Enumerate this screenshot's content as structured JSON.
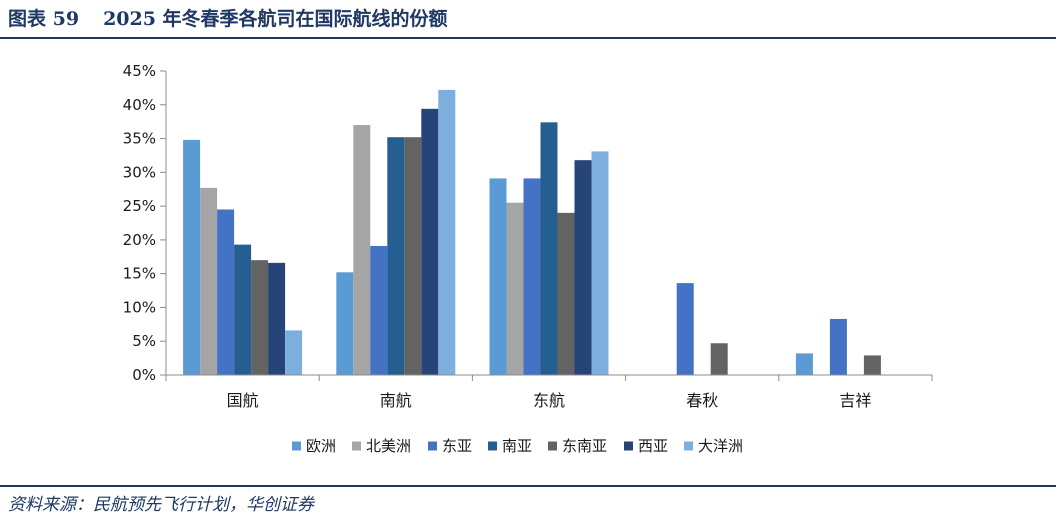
{
  "header": {
    "figure_number": "图表 59",
    "title": "2025 年冬春季各航司在国际航线的份额"
  },
  "footer": {
    "source": "资料来源：民航预先飞行计划，华创证券"
  },
  "chart_data": {
    "type": "bar",
    "title": "2025 年冬春季各航司在国际航线的份额",
    "categories": [
      "国航",
      "南航",
      "东航",
      "春秋",
      "吉祥"
    ],
    "y_ticks": [
      "0%",
      "5%",
      "10%",
      "15%",
      "20%",
      "25%",
      "30%",
      "35%",
      "40%",
      "45%"
    ],
    "ylim": [
      0,
      45
    ],
    "y_unit": "%",
    "grid": false,
    "legend_position": "bottom",
    "series": [
      {
        "name": "欧洲",
        "color": "#5B9BD5",
        "values": [
          34.8,
          15.2,
          29.1,
          0,
          3.2
        ]
      },
      {
        "name": "北美洲",
        "color": "#A5A5A5",
        "values": [
          27.7,
          37.0,
          25.5,
          0,
          0
        ]
      },
      {
        "name": "东亚",
        "color": "#4472C4",
        "values": [
          24.5,
          19.1,
          29.1,
          13.6,
          8.3
        ]
      },
      {
        "name": "南亚",
        "color": "#255E91",
        "values": [
          19.3,
          35.2,
          37.4,
          0,
          0
        ]
      },
      {
        "name": "东南亚",
        "color": "#636363",
        "values": [
          17.0,
          35.2,
          24.0,
          4.7,
          2.9
        ]
      },
      {
        "name": "西亚",
        "color": "#264478",
        "values": [
          16.6,
          39.4,
          31.8,
          0,
          0
        ]
      },
      {
        "name": "大洋洲",
        "color": "#7CAFDD",
        "values": [
          6.6,
          42.2,
          33.1,
          0,
          0
        ]
      }
    ]
  }
}
